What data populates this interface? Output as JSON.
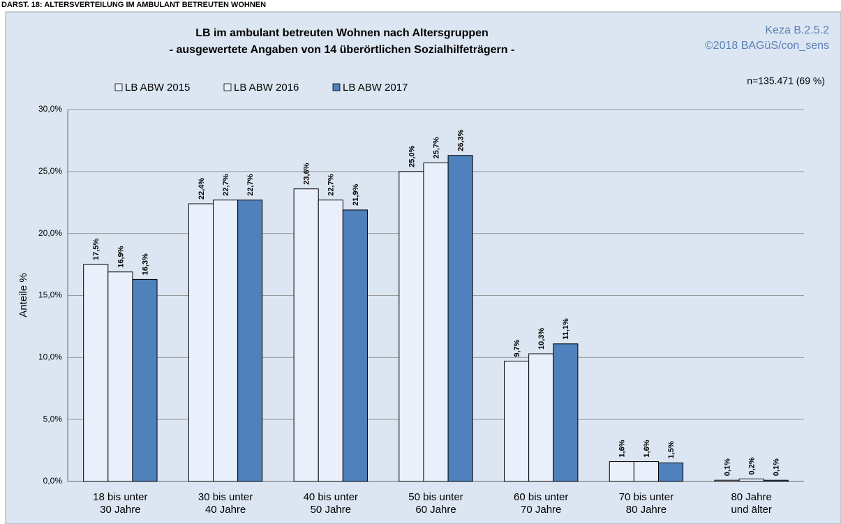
{
  "header": "DARST. 18: ALTERSVERTEILUNG IM AMBULANT BETREUTEN WOHNEN",
  "chart_data": {
    "type": "bar",
    "title": "LB im ambulant betreuten Wohnen nach Altersgruppen",
    "subtitle": "- ausgewertete Angaben von 14 überörtlichen Sozialhilfeträgern -",
    "source": [
      "Keza B.2.5.2",
      "©2018 BAGüS/con_sens"
    ],
    "note": "n=135.471  (69 %)",
    "y_label": "Anteile %",
    "categories": [
      "18 bis unter\n30 Jahre",
      "30 bis unter\n40 Jahre",
      "40 bis unter\n50 Jahre",
      "50 bis unter\n60 Jahre",
      "60 bis unter\n70 Jahre",
      "70 bis unter\n80 Jahre",
      "80 Jahre\nund älter"
    ],
    "series": [
      {
        "name": "LB ABW 2015",
        "color": "#eaf0fb",
        "values": [
          17.5,
          22.4,
          23.6,
          25.0,
          9.7,
          1.6,
          0.1
        ],
        "value_labels": [
          "17,5%",
          "22,4%",
          "23,6%",
          "25,0%",
          "9,7%",
          "1,6%",
          "0,1%"
        ]
      },
      {
        "name": "LB ABW 2016",
        "color": "#eaf0fb",
        "values": [
          16.9,
          22.7,
          22.7,
          25.7,
          10.3,
          1.6,
          0.2
        ],
        "value_labels": [
          "16,9%",
          "22,7%",
          "22,7%",
          "25,7%",
          "10,3%",
          "1,6%",
          "0,2%"
        ]
      },
      {
        "name": "LB ABW 2017",
        "color": "#4f81bd",
        "values": [
          16.3,
          22.7,
          21.9,
          26.3,
          11.1,
          1.5,
          0.1
        ],
        "value_labels": [
          "16,3%",
          "22,7%",
          "21,9%",
          "26,3%",
          "11,1%",
          "1,5%",
          "0,1%"
        ]
      }
    ],
    "ylim": [
      0,
      30
    ],
    "yticks": [
      {
        "value": 0,
        "label": "0,0%"
      },
      {
        "value": 5,
        "label": "5,0%"
      },
      {
        "value": 10,
        "label": "10,0%"
      },
      {
        "value": 15,
        "label": "15,0%"
      },
      {
        "value": 20,
        "label": "20,0%"
      },
      {
        "value": 25,
        "label": "25,0%"
      },
      {
        "value": 30,
        "label": "30,0%"
      }
    ],
    "grid": true
  }
}
